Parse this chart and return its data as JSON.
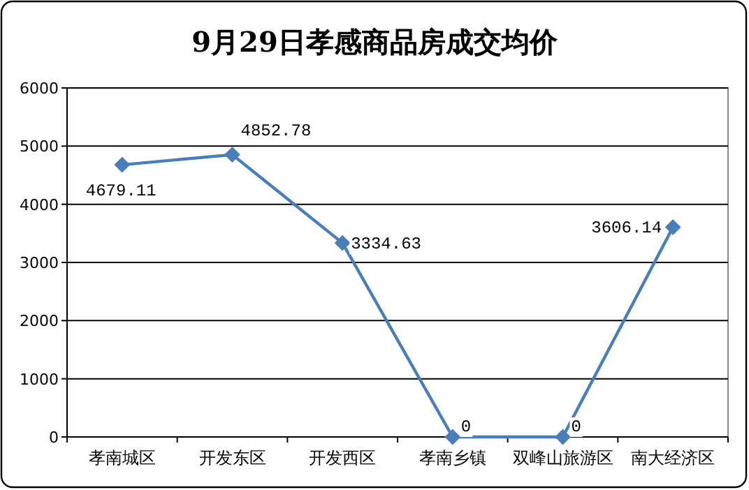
{
  "chart_data": {
    "type": "line",
    "title": "9月29日孝感商品房成交均价",
    "categories": [
      "孝南城区",
      "开发东区",
      "开发西区",
      "孝南乡镇",
      "双峰山旅游区",
      "南大经济区"
    ],
    "values": [
      4679.11,
      4852.78,
      3334.63,
      0,
      0,
      3606.14
    ],
    "color": "#4a7ebb",
    "marker": "diamond",
    "ylim": [
      0,
      6000
    ],
    "yticks": [
      0,
      1000,
      2000,
      3000,
      4000,
      5000,
      6000
    ],
    "grid": "y",
    "data_labels": true
  }
}
